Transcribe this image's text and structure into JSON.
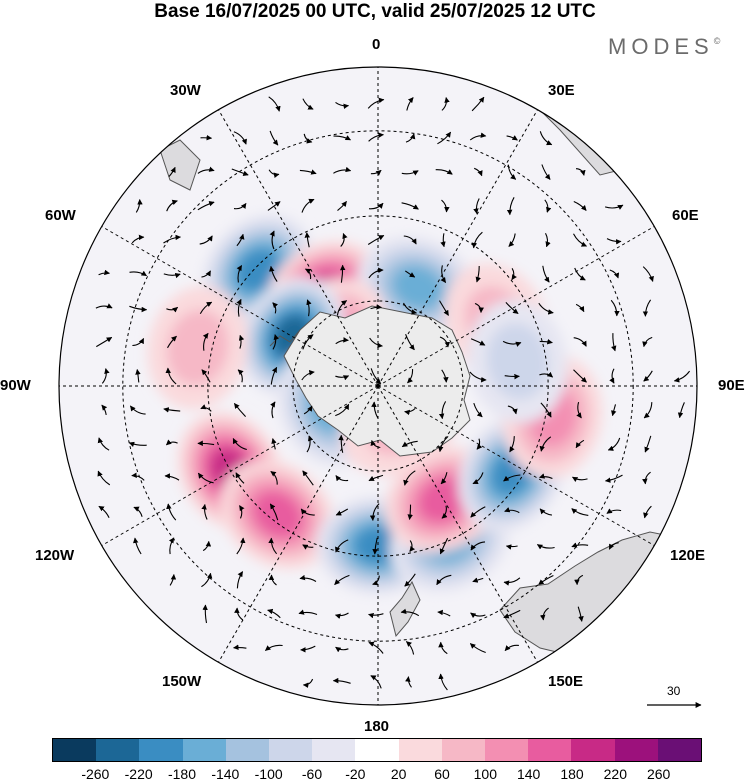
{
  "title": "Base 16/07/2025 00 UTC, valid 25/07/2025 12 UTC",
  "brand": {
    "name": "MODES",
    "mark": "©"
  },
  "longitude_labels": {
    "top": "0",
    "bottom": "180",
    "e30": "30E",
    "e60": "60E",
    "e90": "90E",
    "e120": "120E",
    "e150": "150E",
    "w30": "30W",
    "w60": "60W",
    "w90": "90W",
    "w120": "120W",
    "w150": "150W"
  },
  "reference_vector": {
    "label": "30"
  },
  "colorbar": {
    "colors": [
      "#0a3a5e",
      "#1c6796",
      "#3a8dc2",
      "#6aaed6",
      "#a5c2df",
      "#cdd6ea",
      "#e6e6f2",
      "#ffffff",
      "#fadadd",
      "#f6b8c6",
      "#f38fb2",
      "#e85c9f",
      "#c82a86",
      "#9c117c",
      "#6a0f75"
    ],
    "tick_labels": [
      "-260",
      "-220",
      "-180",
      "-140",
      "-100",
      "-60",
      "-20",
      "20",
      "60",
      "100",
      "140",
      "180",
      "220",
      "260"
    ]
  },
  "anomaly_blobs": [
    {
      "lon": -46,
      "lat": 47,
      "value": -180
    },
    {
      "lon": -30,
      "lat": 30,
      "value": 200
    },
    {
      "lon": 22,
      "lat": 30,
      "value": -150
    },
    {
      "lon": 62,
      "lat": 38,
      "value": 90
    },
    {
      "lon": -42,
      "lat": 20,
      "value": 120
    },
    {
      "lon": -60,
      "lat": 28,
      "value": -240
    },
    {
      "lon": -120,
      "lat": 48,
      "value": 210
    },
    {
      "lon": -142,
      "lat": 46,
      "value": 140
    },
    {
      "lon": 180,
      "lat": 45,
      "value": -210
    },
    {
      "lon": 155,
      "lat": 48,
      "value": -170
    },
    {
      "lon": 150,
      "lat": 37,
      "value": 140
    },
    {
      "lon": 123,
      "lat": 45,
      "value": -190
    },
    {
      "lon": 100,
      "lat": 50,
      "value": 110
    },
    {
      "lon": -113,
      "lat": 15,
      "value": -150
    },
    {
      "lon": -78,
      "lat": 52,
      "value": 90
    },
    {
      "lon": 80,
      "lat": 40,
      "value": -60
    },
    {
      "lon": 150,
      "lat": 12,
      "value": 80
    }
  ]
}
